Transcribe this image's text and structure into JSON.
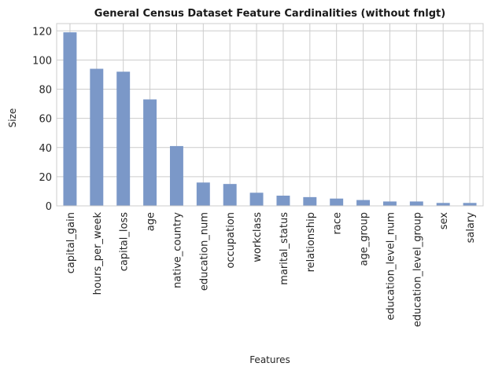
{
  "chart_data": {
    "type": "bar",
    "title": "General Census Dataset Feature Cardinalities (without fnlgt)",
    "xlabel": "Features",
    "ylabel": "Size",
    "categories": [
      "capital_gain",
      "hours_per_week",
      "capital_loss",
      "age",
      "native_country",
      "education_num",
      "occupation",
      "workclass",
      "marital_status",
      "relationship",
      "race",
      "age_group",
      "education_level_num",
      "education_level_group",
      "sex",
      "salary"
    ],
    "values": [
      119,
      94,
      92,
      73,
      41,
      16,
      15,
      9,
      7,
      6,
      5,
      4,
      3,
      3,
      2,
      2
    ],
    "ylim": [
      0,
      125
    ],
    "yticks": [
      0,
      20,
      40,
      60,
      80,
      100,
      120
    ],
    "grid": true,
    "bar_color": "#7b98c8"
  }
}
